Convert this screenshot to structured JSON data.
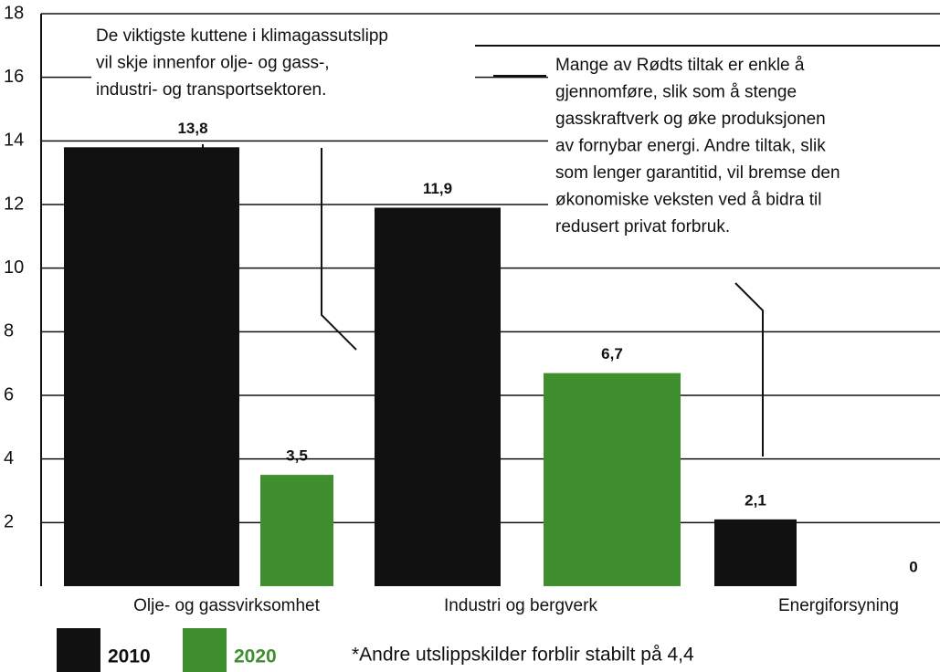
{
  "chart_data": {
    "type": "bar",
    "categories": [
      "Olje- og gassvirksomhet",
      "Industri og bergverk",
      "Energiforsyning"
    ],
    "series": [
      {
        "name": "2010",
        "color": "#111111",
        "values": [
          13.8,
          11.9,
          2.1
        ],
        "value_labels": [
          "13,8",
          "11,9",
          "2,1"
        ]
      },
      {
        "name": "2020",
        "color": "#3f8f2f",
        "values": [
          3.5,
          6.7,
          0
        ],
        "value_labels": [
          "3,5",
          "6,7",
          "0"
        ]
      }
    ],
    "ylim": [
      0,
      18
    ],
    "yticks": [
      2,
      4,
      6,
      8,
      10,
      12,
      14,
      16,
      18
    ],
    "grid": true,
    "annotations": [
      [
        "De viktigste kuttene i klimagassutslipp",
        "vil skje innenfor olje- og gass-,",
        "industri- og transportsektoren."
      ],
      [
        "Mange av Rødts tiltak er enkle å",
        "gjennomføre, slik som å stenge",
        "gasskraftverk og øke produksjonen",
        "av fornybar energi. Andre tiltak, slik",
        "som lenger garantitid, vil bremse den",
        "økonomiske veksten ved å bidra til",
        "redusert privat forbruk."
      ]
    ],
    "footnote": "*Andre utslippskilder forblir stabilt på 4,4"
  }
}
